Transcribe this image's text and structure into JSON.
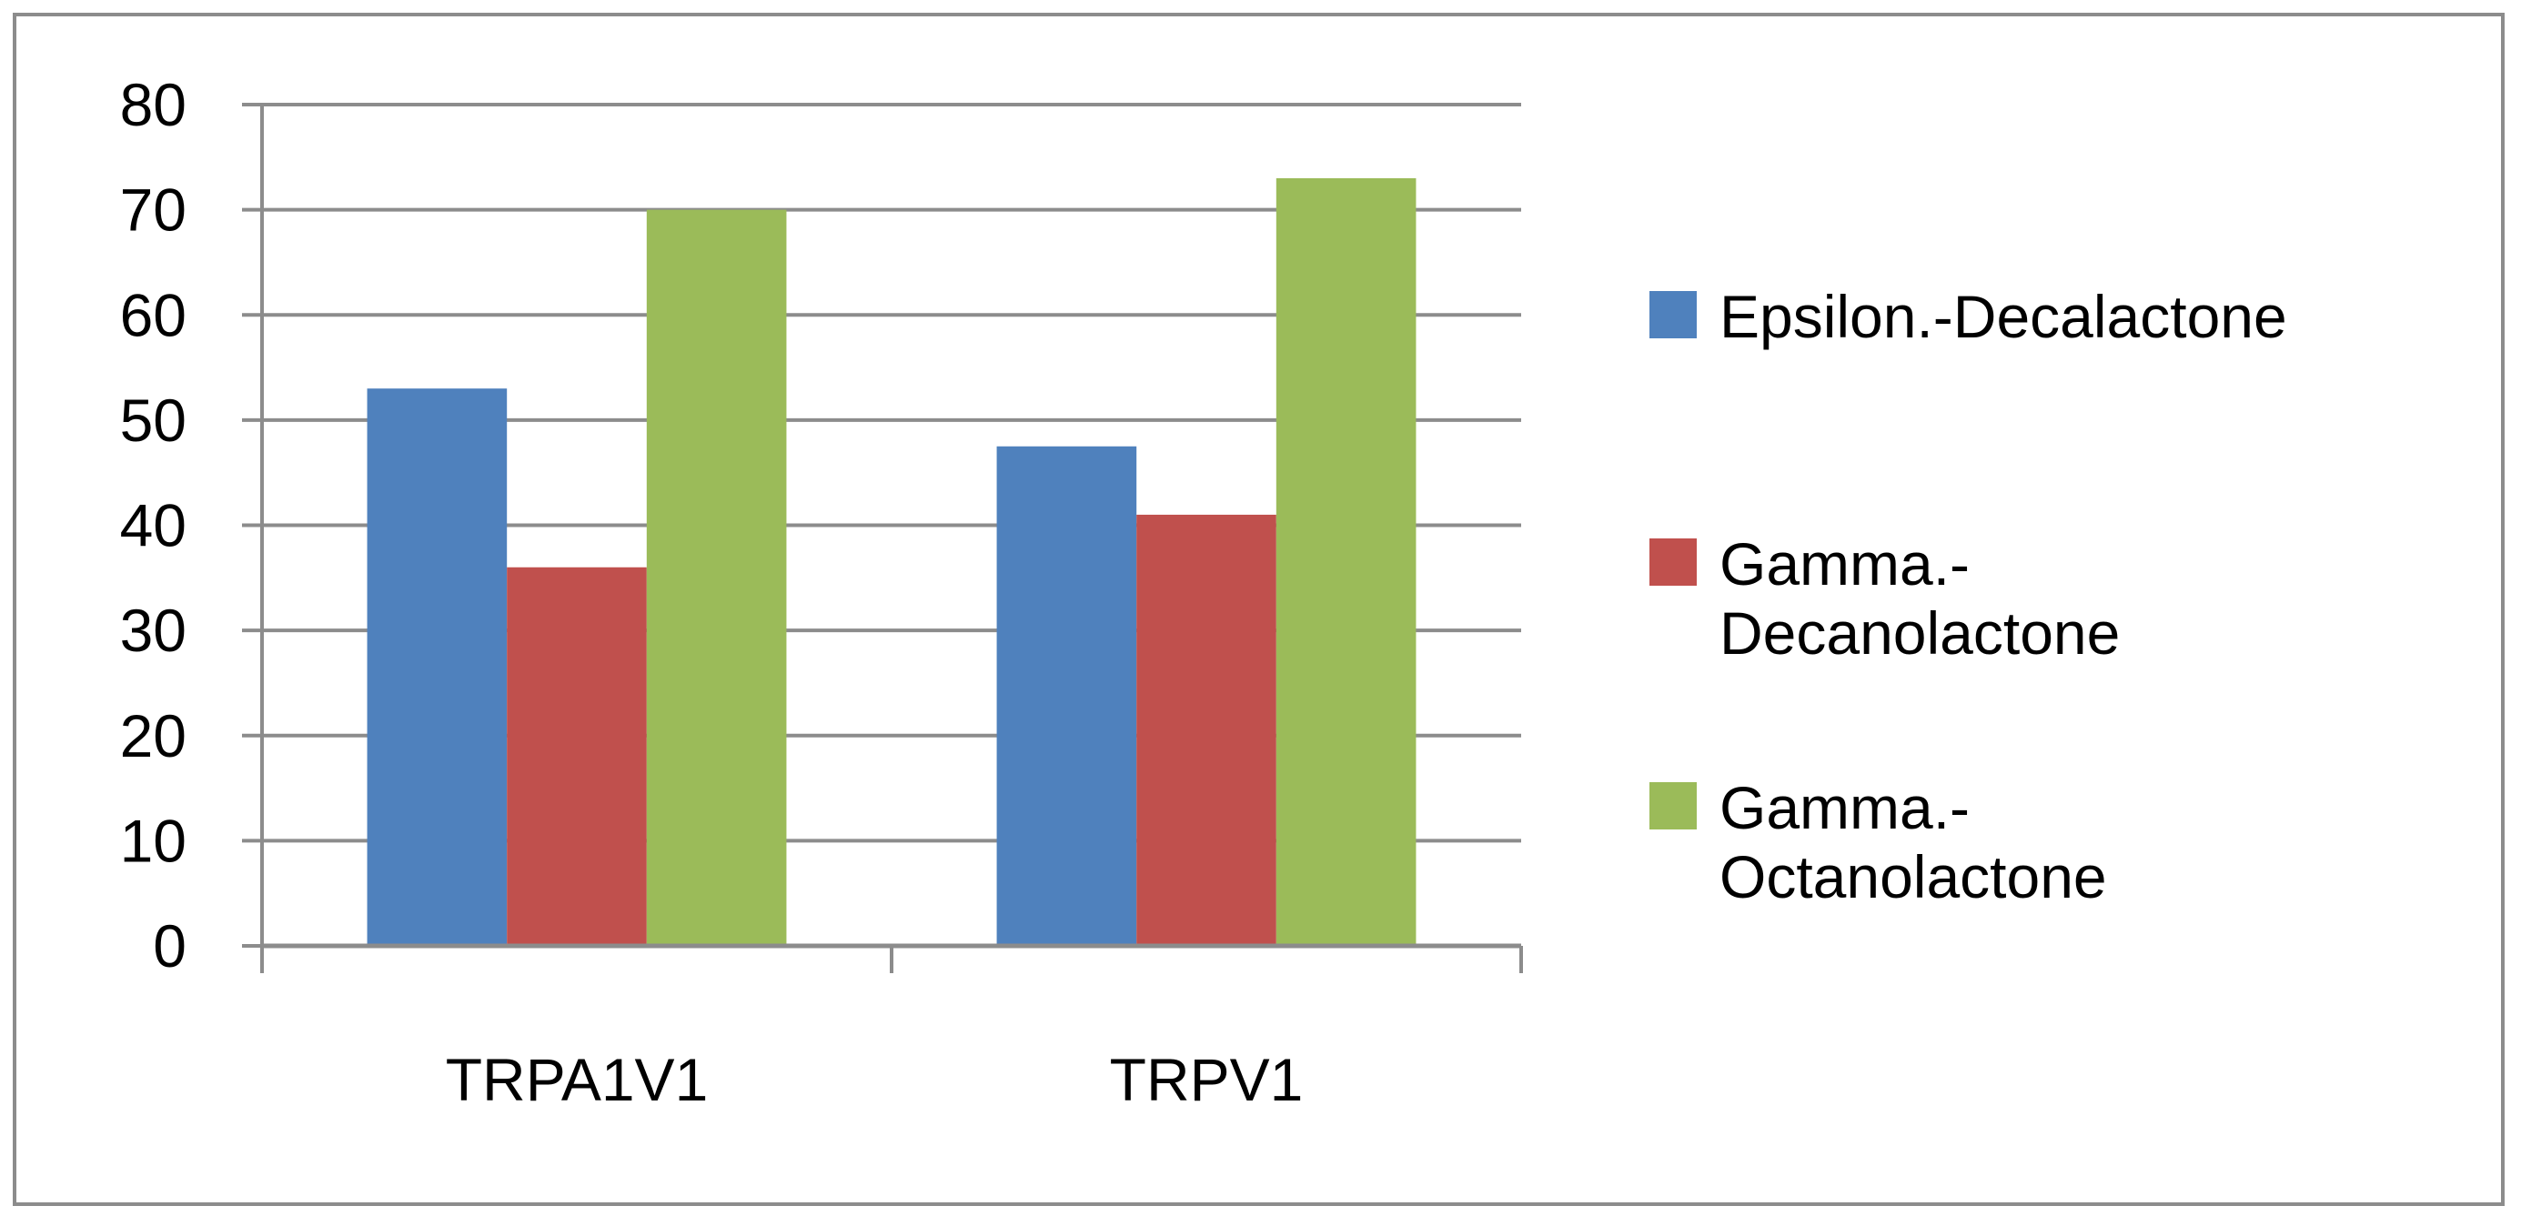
{
  "chart_data": {
    "type": "bar",
    "categories": [
      "TRPA1V1",
      "TRPV1"
    ],
    "series": [
      {
        "name": "Epsilon.-Decalactone",
        "values": [
          53,
          47.5
        ],
        "color": "#4f81bd",
        "legend_lines": [
          "Epsilon.-Decalactone"
        ]
      },
      {
        "name": "Gamma.-Decanolactone",
        "values": [
          36,
          41
        ],
        "color": "#c0504d",
        "legend_lines": [
          "Gamma.-",
          "Decanolactone"
        ]
      },
      {
        "name": "Gamma.-Octanolactone",
        "values": [
          70,
          73
        ],
        "color": "#9bbb59",
        "legend_lines": [
          "Gamma.-",
          "Octanolactone"
        ]
      }
    ],
    "ylim": [
      0,
      80
    ],
    "yticks": [
      0,
      10,
      20,
      30,
      40,
      50,
      60,
      70,
      80
    ],
    "title": "",
    "xlabel": "",
    "ylabel": "",
    "grid": true,
    "legend_position": "right"
  }
}
